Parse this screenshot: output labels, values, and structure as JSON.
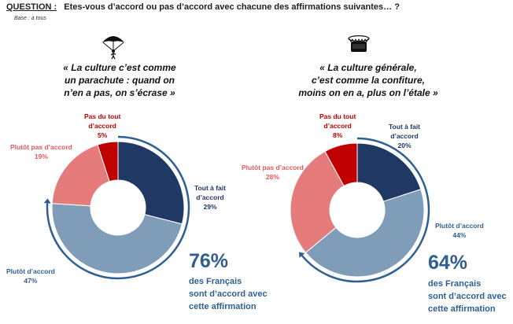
{
  "question": {
    "label": "QUESTION :",
    "text": "Etes-vous d’accord ou pas d’accord avec chacune des affirmations suivantes… ?"
  },
  "base": "Base : à tous",
  "colors": {
    "tout_a_fait": "#1f3864",
    "plutot_d_accord": "#7f9db9",
    "plutot_pas": "#e57b7b",
    "pas_du_tout": "#c00000",
    "highlight": "#2f5f91"
  },
  "panels": [
    {
      "icon": "parachute-icon",
      "quote_lines": [
        "« La culture c’est comme",
        "un parachute : quand on",
        "n’en a pas, on s’écrase »"
      ],
      "total_pct": "76%",
      "caption_lines": [
        "des Français",
        "sont d’accord avec",
        "cette affirmation"
      ]
    },
    {
      "icon": "jam-jar-icon",
      "quote_lines": [
        "« La culture générale,",
        "c’est comme la confiture,",
        "moins on en a, plus on l’étale »"
      ],
      "total_pct": "64%",
      "caption_lines": [
        "des Français",
        "sont d’accord avec",
        "cette affirmation"
      ]
    }
  ],
  "chart_data": [
    {
      "type": "pie",
      "title": "« La culture c’est comme un parachute : quand on n’en a pas, on s’écrase »",
      "categories": [
        "Tout à fait d’accord",
        "Plutôt d’accord",
        "Plutôt pas d’accord",
        "Pas du tout d’accord"
      ],
      "labels": [
        [
          "Tout à fait",
          "d’accord"
        ],
        [
          "Plutôt d’accord"
        ],
        [
          "Plutôt pas d’accord"
        ],
        [
          "Pas du tout",
          "d’accord"
        ]
      ],
      "values": [
        29,
        47,
        19,
        5
      ],
      "value_labels": [
        "29%",
        "47%",
        "19%",
        "5%"
      ],
      "colors": [
        "#1f3864",
        "#7f9db9",
        "#e57b7b",
        "#c00000"
      ]
    },
    {
      "type": "pie",
      "title": "« La culture générale, c’est comme la confiture, moins on en a, plus on l’étale »",
      "categories": [
        "Tout à fait d’accord",
        "Plutôt d’accord",
        "Plutôt pas d’accord",
        "Pas du tout d’accord"
      ],
      "labels": [
        [
          "Tout à fait",
          "d’accord"
        ],
        [
          "Plutôt d’accord"
        ],
        [
          "Plutôt pas d’accord"
        ],
        [
          "Pas du tout",
          "d’accord"
        ]
      ],
      "values": [
        20,
        44,
        28,
        8
      ],
      "value_labels": [
        "20%",
        "44%",
        "28%",
        "8%"
      ],
      "colors": [
        "#1f3864",
        "#7f9db9",
        "#e57b7b",
        "#c00000"
      ]
    }
  ]
}
